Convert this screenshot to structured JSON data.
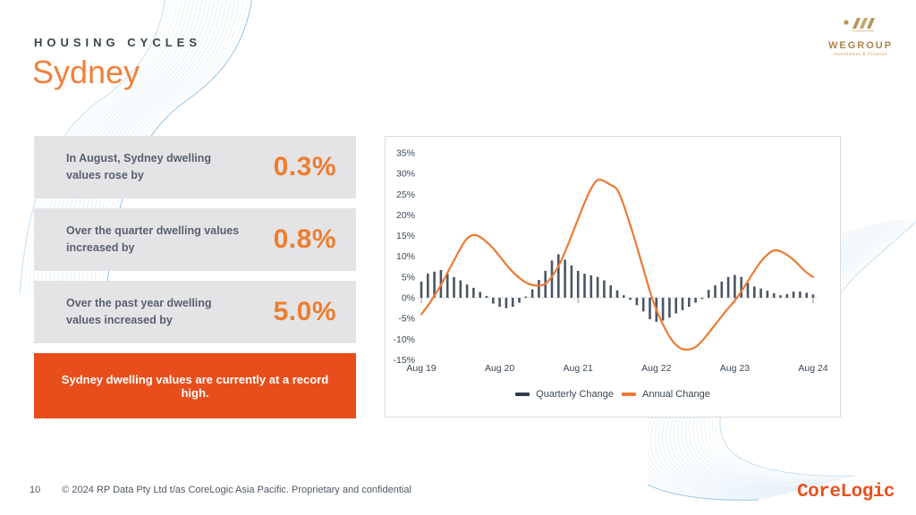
{
  "header": {
    "eyebrow": "HOUSING CYCLES",
    "title": "Sydney"
  },
  "wegroup_logo": {
    "name": "WEGROUP",
    "tagline": "Investment & Finance"
  },
  "stats": [
    {
      "label": "In August, Sydney dwelling values rose by",
      "value": "0.3%"
    },
    {
      "label": "Over the quarter dwelling values increased by",
      "value": "0.8%"
    },
    {
      "label": "Over the past year dwelling values increased by",
      "value": "5.0%"
    }
  ],
  "callout": {
    "text": "Sydney dwelling values are currently at a record high."
  },
  "footer": {
    "page_number": "10",
    "copyright": "© 2024 RP Data Pty Ltd t/as CoreLogic Asia Pacific. Proprietary and confidential",
    "brand": "CoreLogic"
  },
  "colors": {
    "accent_orange": "#EE7D2F",
    "title_orange": "#F1803B",
    "callout_bg": "#E84E1B",
    "stat_box_bg": "#E4E4E6",
    "bar_color": "#4C5565",
    "line_color": "#EC7B33",
    "wave_blue": "#7FB5DE",
    "wegroup_gold": "#A8854C",
    "corelogic_red": "#E6511F"
  },
  "chart_data": {
    "type": "bar+line",
    "x_unit": "month",
    "x_range": [
      "Aug 2019",
      "Aug 2024"
    ],
    "x_tick_labels": [
      "Aug 19",
      "Aug 20",
      "Aug 21",
      "Aug 22",
      "Aug 23",
      "Aug 24"
    ],
    "x_tick_positions": [
      0,
      12,
      24,
      36,
      48,
      60
    ],
    "y_tick_labels": [
      "35%",
      "30%",
      "25%",
      "20%",
      "15%",
      "10%",
      "5%",
      "0%",
      "-5%",
      "-10%",
      "-15%"
    ],
    "ylim": [
      -15,
      35
    ],
    "grid": "zero-line-dashed-only",
    "legend_position": "bottom-center",
    "series": [
      {
        "name": "Quarterly Change",
        "type": "bar",
        "color": "#4C5565",
        "values": [
          3.9,
          5.8,
          6.3,
          6.7,
          5.8,
          5.0,
          4.2,
          3.2,
          2.4,
          1.4,
          0.4,
          -1.4,
          -2.2,
          -2.5,
          -2.2,
          -1.2,
          0.3,
          2.0,
          4.3,
          6.5,
          9.0,
          10.5,
          9.2,
          7.8,
          6.5,
          5.8,
          5.4,
          5.0,
          4.2,
          3.0,
          1.8,
          0.6,
          -0.5,
          -1.8,
          -3.3,
          -5.2,
          -5.8,
          -5.5,
          -4.8,
          -3.8,
          -3.0,
          -2.2,
          -1.2,
          -0.3,
          1.9,
          3.0,
          3.9,
          5.0,
          5.5,
          5.0,
          3.6,
          2.7,
          2.2,
          1.7,
          1.1,
          0.6,
          0.9,
          1.5,
          1.5,
          1.2,
          0.8
        ]
      },
      {
        "name": "Annual Change",
        "type": "line",
        "color": "#EC7B33",
        "values": [
          -4.0,
          -2.0,
          0.5,
          3.0,
          6.0,
          9.0,
          12.0,
          14.5,
          15.3,
          14.8,
          13.5,
          12.0,
          10.0,
          8.0,
          6.2,
          4.8,
          3.6,
          3.0,
          2.9,
          3.2,
          5.0,
          7.5,
          11.0,
          15.0,
          19.0,
          23.0,
          26.5,
          28.8,
          28.2,
          27.2,
          26.5,
          22.5,
          17.5,
          12.5,
          7.0,
          1.5,
          -3.0,
          -6.5,
          -9.5,
          -11.5,
          -12.5,
          -12.6,
          -12.0,
          -10.5,
          -8.5,
          -6.5,
          -4.5,
          -2.5,
          -0.8,
          1.5,
          4.0,
          6.5,
          8.8,
          10.5,
          11.6,
          11.3,
          10.4,
          9.2,
          7.6,
          6.0,
          5.0
        ]
      }
    ]
  }
}
